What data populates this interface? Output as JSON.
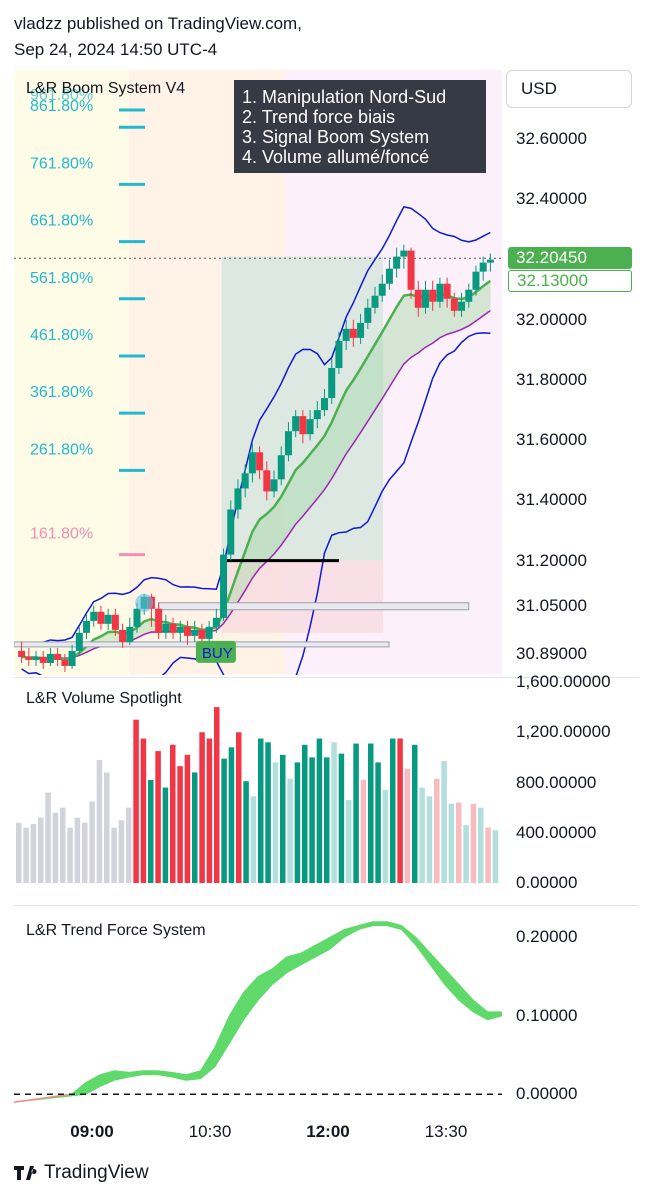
{
  "header": {
    "line1": "vladzz published on TradingView.com,",
    "line2": "Sep 24, 2024 14:50 UTC-4"
  },
  "currency": "USD",
  "brand": "TradingView",
  "legend": [
    "1. Manipulation Nord-Sud",
    "2. Trend force biais",
    "3. Signal Boom System",
    "4. Volume allumé/foncé"
  ],
  "x_ticks": [
    "09:00",
    "10:30",
    "12:00",
    "13:30"
  ],
  "colors": {
    "up": "#089981",
    "down": "#f23645",
    "bb": "#0d1ad6",
    "ema_fast": "#4caf50",
    "ema_slow": "#9c27b0",
    "fib_cyan": "#22b8cf",
    "fib_pink": "#f48fb1",
    "trend_fill": "#5fd96a",
    "buy_label": "#4caf50"
  },
  "chart_data": [
    {
      "name": "price",
      "title": "L&R Boom System V4",
      "type": "candlestick",
      "ylim": [
        30.82,
        32.83
      ],
      "y_ticks": [
        "32.60000",
        "32.40000",
        "32.20000",
        "32.00000",
        "31.80000",
        "31.60000",
        "31.40000",
        "31.20000",
        "31.05000",
        "30.89000"
      ],
      "last_price": "32.20450",
      "ema_price": "32.13000",
      "fib_levels": [
        {
          "label": "861.80%",
          "value": 32.64
        },
        {
          "label": "761.80%",
          "value": 32.45
        },
        {
          "label": "661.80%",
          "value": 32.26
        },
        {
          "label": "561.80%",
          "value": 32.07
        },
        {
          "label": "461.80%",
          "value": 31.88
        },
        {
          "label": "361.80%",
          "value": 31.69
        },
        {
          "label": "261.80%",
          "value": 31.5
        },
        {
          "label": "161.80%",
          "value": 31.22
        }
      ],
      "fib_top_label": "961.80%",
      "signal": "BUY",
      "candles": [
        [
          30.9,
          30.88,
          30.93,
          30.86
        ],
        [
          30.88,
          30.87,
          30.91,
          30.85
        ],
        [
          30.87,
          30.88,
          30.9,
          30.85
        ],
        [
          30.88,
          30.86,
          30.9,
          30.84
        ],
        [
          30.86,
          30.89,
          30.91,
          30.85
        ],
        [
          30.89,
          30.87,
          30.91,
          30.85
        ],
        [
          30.87,
          30.85,
          30.89,
          30.83
        ],
        [
          30.85,
          30.9,
          30.92,
          30.84
        ],
        [
          30.9,
          30.96,
          30.98,
          30.89
        ],
        [
          30.96,
          31.0,
          31.02,
          30.94
        ],
        [
          31.0,
          31.03,
          31.05,
          30.98
        ],
        [
          31.03,
          30.99,
          31.05,
          30.97
        ],
        [
          30.99,
          31.02,
          31.04,
          30.97
        ],
        [
          31.02,
          30.97,
          31.04,
          30.95
        ],
        [
          30.97,
          30.93,
          30.99,
          30.91
        ],
        [
          30.93,
          30.98,
          31.01,
          30.92
        ],
        [
          30.98,
          31.04,
          31.06,
          30.96
        ],
        [
          31.04,
          31.08,
          31.09,
          31.02
        ],
        [
          31.08,
          31.04,
          31.09,
          30.98
        ],
        [
          31.04,
          30.96,
          31.06,
          30.94
        ],
        [
          30.96,
          30.99,
          31.02,
          30.94
        ],
        [
          30.99,
          30.96,
          31.01,
          30.94
        ],
        [
          30.96,
          30.98,
          31.0,
          30.93
        ],
        [
          30.98,
          30.95,
          31.0,
          30.92
        ],
        [
          30.95,
          30.97,
          31.0,
          30.93
        ],
        [
          30.97,
          30.94,
          30.99,
          30.92
        ],
        [
          30.94,
          30.98,
          31.0,
          30.92
        ],
        [
          30.98,
          31.01,
          31.04,
          30.96
        ],
        [
          31.01,
          31.22,
          31.24,
          31.0
        ],
        [
          31.22,
          31.37,
          31.4,
          31.2
        ],
        [
          31.37,
          31.44,
          31.47,
          31.34
        ],
        [
          31.44,
          31.49,
          31.52,
          31.41
        ],
        [
          31.49,
          31.56,
          31.59,
          31.46
        ],
        [
          31.56,
          31.5,
          31.58,
          31.47
        ],
        [
          31.5,
          31.43,
          31.53,
          31.4
        ],
        [
          31.43,
          31.47,
          31.5,
          31.41
        ],
        [
          31.47,
          31.55,
          31.58,
          31.45
        ],
        [
          31.55,
          31.63,
          31.66,
          31.53
        ],
        [
          31.63,
          31.68,
          31.7,
          31.61
        ],
        [
          31.68,
          31.62,
          31.7,
          31.59
        ],
        [
          31.62,
          31.67,
          31.7,
          31.6
        ],
        [
          31.67,
          31.7,
          31.73,
          31.64
        ],
        [
          31.7,
          31.74,
          31.77,
          31.68
        ],
        [
          31.74,
          31.84,
          31.87,
          31.72
        ],
        [
          31.84,
          31.93,
          31.96,
          31.82
        ],
        [
          31.93,
          31.97,
          32.0,
          31.9
        ],
        [
          31.97,
          31.94,
          32.0,
          31.91
        ],
        [
          31.94,
          31.99,
          32.02,
          31.92
        ],
        [
          31.99,
          32.04,
          32.07,
          31.97
        ],
        [
          32.04,
          32.08,
          32.11,
          32.02
        ],
        [
          32.08,
          32.12,
          32.15,
          32.06
        ],
        [
          32.12,
          32.17,
          32.2,
          32.1
        ],
        [
          32.17,
          32.21,
          32.24,
          32.14
        ],
        [
          32.21,
          32.23,
          32.25,
          32.17
        ],
        [
          32.23,
          32.1,
          32.24,
          32.07
        ],
        [
          32.1,
          32.04,
          32.13,
          32.01
        ],
        [
          32.04,
          32.1,
          32.13,
          32.02
        ],
        [
          32.1,
          32.06,
          32.13,
          32.03
        ],
        [
          32.06,
          32.12,
          32.14,
          32.04
        ],
        [
          32.12,
          32.07,
          32.14,
          32.04
        ],
        [
          32.07,
          32.03,
          32.09,
          32.01
        ],
        [
          32.03,
          32.06,
          32.09,
          32.01
        ],
        [
          32.06,
          32.1,
          32.12,
          32.04
        ],
        [
          32.1,
          32.16,
          32.18,
          32.08
        ],
        [
          32.16,
          32.19,
          32.21,
          32.13
        ],
        [
          32.19,
          32.2,
          32.22,
          32.16
        ]
      ]
    },
    {
      "name": "volume",
      "title": "L&R Volume Spotlight",
      "type": "bar",
      "ylim": [
        0,
        1600
      ],
      "y_ticks": [
        "1,600.00000",
        "1,200.00000",
        "800.00000",
        "400.00000",
        "0.00000"
      ],
      "values": [
        480,
        440,
        470,
        520,
        720,
        560,
        600,
        440,
        520,
        480,
        650,
        980,
        880,
        440,
        500,
        600,
        1300,
        1150,
        820,
        1050,
        760,
        1100,
        930,
        1020,
        880,
        1200,
        1150,
        1400,
        990,
        1080,
        1200,
        810,
        690,
        1150,
        1120,
        960,
        1020,
        830,
        960,
        1100,
        1000,
        1150,
        1000,
        1120,
        1030,
        660,
        1110,
        820,
        1110,
        960,
        740,
        1150,
        1150,
        910,
        1100,
        760,
        690,
        830,
        970,
        630,
        640,
        460,
        630,
        600,
        440,
        420
      ],
      "kinds": [
        "n",
        "n",
        "n",
        "n",
        "n",
        "n",
        "n",
        "n",
        "n",
        "n",
        "n",
        "n",
        "n",
        "n",
        "n",
        "n",
        "d",
        "d",
        "u",
        "d",
        "u",
        "d",
        "d",
        "d",
        "u",
        "d",
        "d",
        "d",
        "u",
        "u",
        "d",
        "u",
        "lu",
        "u",
        "u",
        "lu",
        "u",
        "lu",
        "u",
        "u",
        "u",
        "u",
        "u",
        "lu",
        "u",
        "lu",
        "u",
        "ld",
        "u",
        "u",
        "lu",
        "u",
        "d",
        "ld",
        "u",
        "lu",
        "lu",
        "ld",
        "lu",
        "lu",
        "ld",
        "lu",
        "ld",
        "lu",
        "ld",
        "lu"
      ]
    },
    {
      "name": "trend_force",
      "title": "L&R Trend Force System",
      "type": "area",
      "ylim": [
        -0.02,
        0.24
      ],
      "y_ticks": [
        "0.20000",
        "0.10000",
        "0.00000"
      ],
      "zero_line": 0,
      "series_a": [
        -0.01,
        -0.008,
        -0.005,
        -0.002,
        0.0,
        0.015,
        0.025,
        0.03,
        0.028,
        0.03,
        0.03,
        0.028,
        0.025,
        0.03,
        0.06,
        0.1,
        0.13,
        0.15,
        0.16,
        0.175,
        0.18,
        0.19,
        0.2,
        0.21,
        0.215,
        0.22,
        0.22,
        0.215,
        0.2,
        0.18,
        0.16,
        0.14,
        0.12,
        0.105,
        0.105
      ],
      "series_b": [
        -0.01,
        -0.008,
        -0.006,
        -0.004,
        -0.002,
        0.0,
        0.01,
        0.018,
        0.022,
        0.025,
        0.025,
        0.022,
        0.018,
        0.02,
        0.035,
        0.065,
        0.095,
        0.12,
        0.14,
        0.155,
        0.165,
        0.175,
        0.185,
        0.2,
        0.21,
        0.215,
        0.215,
        0.21,
        0.19,
        0.165,
        0.14,
        0.12,
        0.105,
        0.095,
        0.1
      ]
    }
  ]
}
